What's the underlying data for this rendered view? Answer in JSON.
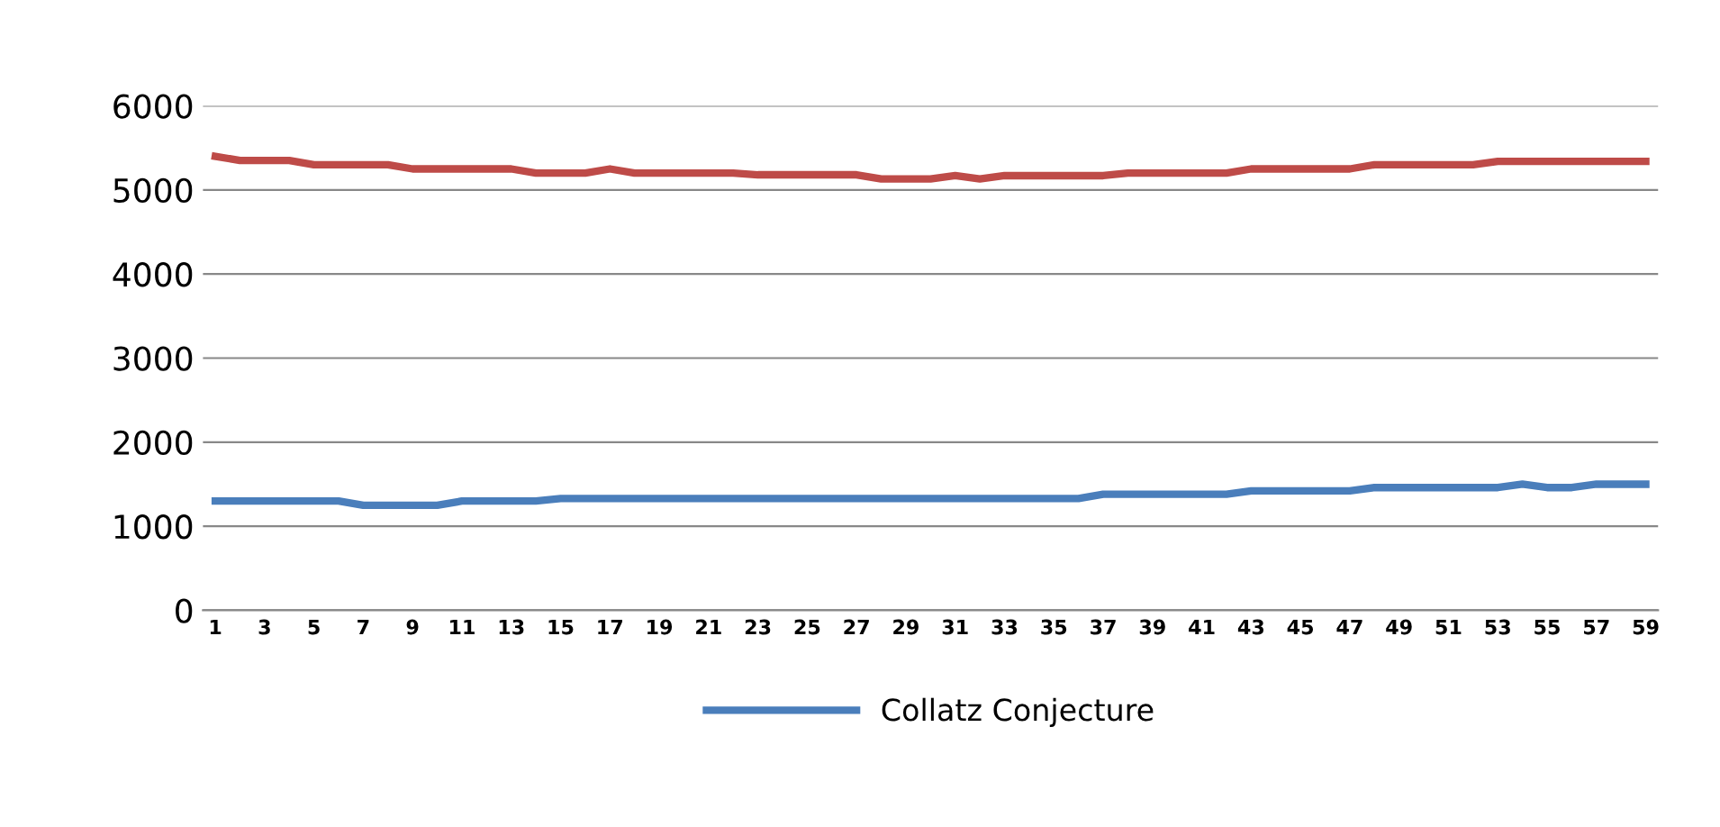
{
  "chart_data": {
    "type": "line",
    "categories": [
      "1",
      null,
      "3",
      null,
      "5",
      null,
      "7",
      null,
      "9",
      null,
      "11",
      null,
      "13",
      null,
      "15",
      null,
      "17",
      null,
      "19",
      null,
      "21",
      null,
      "23",
      null,
      "25",
      null,
      "27",
      null,
      "29",
      null,
      "31",
      null,
      "33",
      null,
      "35",
      null,
      "37",
      null,
      "39",
      null,
      "41",
      null,
      "43",
      null,
      "45",
      null,
      "47",
      null,
      "49",
      null,
      "51",
      null,
      "53",
      null,
      "55",
      null,
      "57",
      null,
      "59"
    ],
    "series": [
      {
        "name": "Collatz Conjecture",
        "color": "#4a7ebb",
        "values": [
          1300,
          1300,
          1300,
          1300,
          1300,
          1300,
          1250,
          1250,
          1250,
          1250,
          1300,
          1300,
          1300,
          1300,
          1330,
          1330,
          1330,
          1330,
          1330,
          1330,
          1330,
          1330,
          1330,
          1330,
          1330,
          1330,
          1330,
          1330,
          1330,
          1330,
          1330,
          1330,
          1330,
          1330,
          1330,
          1330,
          1380,
          1380,
          1380,
          1380,
          1380,
          1380,
          1420,
          1420,
          1420,
          1420,
          1420,
          1460,
          1460,
          1460,
          1460,
          1460,
          1460,
          1500,
          1460,
          1460,
          1500,
          1500,
          1500
        ]
      },
      {
        "color": "#be4b48",
        "values": [
          5400,
          5350,
          5350,
          5350,
          5300,
          5300,
          5300,
          5300,
          5250,
          5250,
          5250,
          5250,
          5250,
          5200,
          5200,
          5200,
          5250,
          5200,
          5200,
          5200,
          5200,
          5200,
          5180,
          5180,
          5180,
          5180,
          5180,
          5130,
          5130,
          5130,
          5170,
          5130,
          5170,
          5170,
          5170,
          5170,
          5170,
          5200,
          5200,
          5200,
          5200,
          5200,
          5250,
          5250,
          5250,
          5250,
          5250,
          5300,
          5300,
          5300,
          5300,
          5300,
          5340,
          5340,
          5340,
          5340,
          5340,
          5340,
          5340
        ]
      }
    ],
    "ylim": [
      0,
      6000
    ],
    "yticks": [
      0,
      1000,
      2000,
      3000,
      4000,
      5000,
      6000
    ],
    "grid": "y",
    "legend": "bottom",
    "marker": "none",
    "line_style": "solid"
  }
}
